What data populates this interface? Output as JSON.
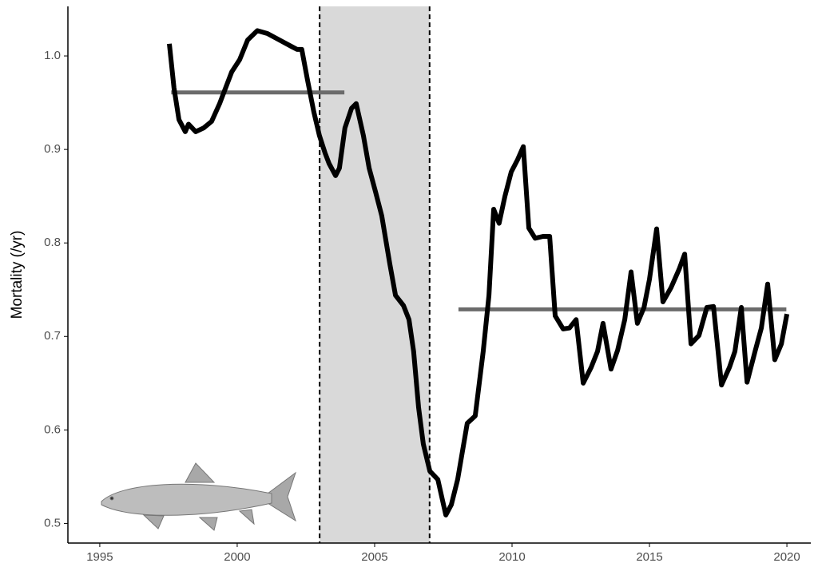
{
  "chart_data": {
    "type": "line",
    "y_label": "Mortality (/yr)",
    "x": [
      1997.53,
      1997.7,
      1997.88,
      1998.11,
      1998.23,
      1998.49,
      1998.78,
      1999.07,
      1999.36,
      1999.8,
      2000.09,
      2000.38,
      2000.73,
      2001.1,
      2001.54,
      2001.98,
      2002.18,
      2002.35,
      2002.56,
      2002.79,
      2002.99,
      2003.2,
      2003.34,
      2003.58,
      2003.72,
      2003.92,
      2004.16,
      2004.33,
      2004.59,
      2004.8,
      2005.03,
      2005.26,
      2005.55,
      2005.76,
      2006.05,
      2006.25,
      2006.42,
      2006.6,
      2006.77,
      2007.01,
      2007.3,
      2007.59,
      2007.79,
      2008.02,
      2008.37,
      2008.66,
      2008.95,
      2009.16,
      2009.33,
      2009.53,
      2009.74,
      2009.97,
      2010.2,
      2010.41,
      2010.61,
      2010.84,
      2011.13,
      2011.37,
      2011.57,
      2011.86,
      2012.09,
      2012.33,
      2012.59,
      2012.88,
      2013.11,
      2013.31,
      2013.6,
      2013.84,
      2014.1,
      2014.33,
      2014.56,
      2014.8,
      2015.0,
      2015.26,
      2015.49,
      2015.78,
      2016.08,
      2016.28,
      2016.51,
      2016.8,
      2017.09,
      2017.33,
      2017.62,
      2017.91,
      2018.11,
      2018.34,
      2018.55,
      2018.84,
      2019.07,
      2019.3,
      2019.56,
      2019.8,
      2020.0
    ],
    "values": [
      1.013,
      0.966,
      0.932,
      0.919,
      0.927,
      0.919,
      0.923,
      0.93,
      0.949,
      0.983,
      0.996,
      1.017,
      1.027,
      1.024,
      1.017,
      1.01,
      1.007,
      1.007,
      0.974,
      0.94,
      0.915,
      0.896,
      0.885,
      0.872,
      0.88,
      0.923,
      0.944,
      0.949,
      0.915,
      0.88,
      0.855,
      0.829,
      0.778,
      0.744,
      0.733,
      0.718,
      0.684,
      0.624,
      0.585,
      0.556,
      0.547,
      0.509,
      0.52,
      0.547,
      0.607,
      0.615,
      0.684,
      0.744,
      0.836,
      0.821,
      0.85,
      0.876,
      0.889,
      0.903,
      0.816,
      0.805,
      0.807,
      0.807,
      0.722,
      0.708,
      0.709,
      0.718,
      0.65,
      0.667,
      0.684,
      0.714,
      0.665,
      0.685,
      0.718,
      0.769,
      0.714,
      0.731,
      0.761,
      0.815,
      0.737,
      0.752,
      0.772,
      0.788,
      0.692,
      0.701,
      0.731,
      0.732,
      0.648,
      0.667,
      0.684,
      0.731,
      0.651,
      0.684,
      0.709,
      0.756,
      0.675,
      0.692,
      0.724
    ],
    "color": "#000000",
    "means": [
      {
        "x": [
          1997.6,
          2003.9
        ],
        "value": 0.961
      },
      {
        "x": [
          2008.05,
          2019.98
        ],
        "value": 0.729
      }
    ],
    "mean_color": "#6b6b6b",
    "shaded": [
      2003,
      2007
    ],
    "shade_color": "#d9d9d9",
    "xlim": [
      1993.84,
      2020.87
    ],
    "ylim": [
      0.479,
      1.053
    ],
    "xticks": [
      1995,
      2000,
      2005,
      2010,
      2015,
      2020
    ],
    "yticks": [
      0.5,
      0.6,
      0.7,
      0.8,
      0.9,
      {
        "value": 1,
        "label": "1.0"
      }
    ]
  }
}
